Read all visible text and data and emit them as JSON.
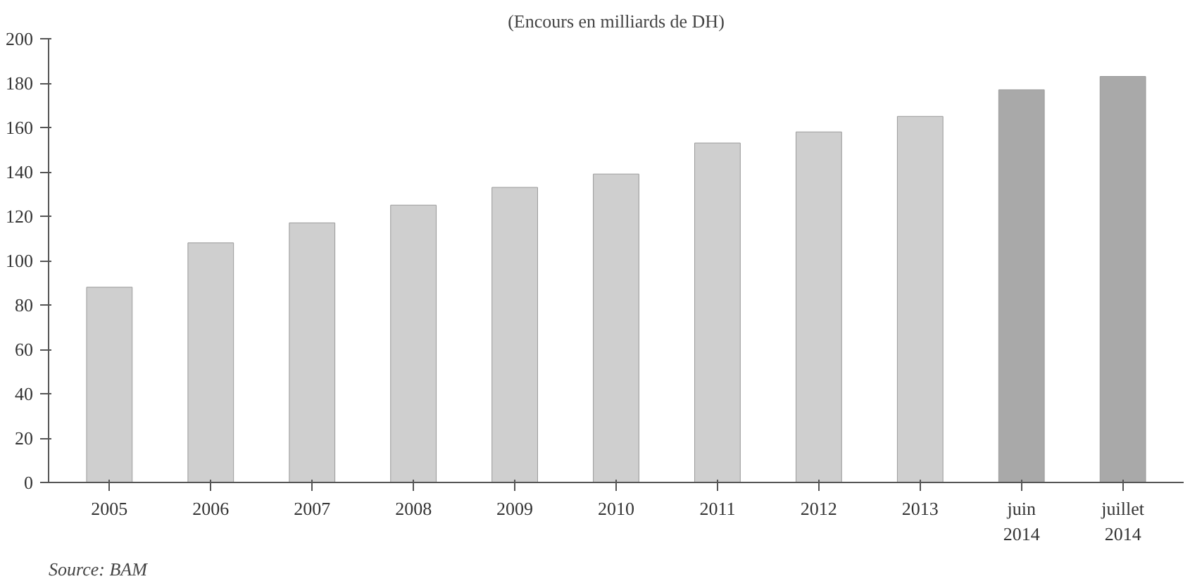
{
  "chart_data": {
    "type": "bar",
    "subtitle": "(Encours en milliards de DH)",
    "categories": [
      "2005",
      "2006",
      "2007",
      "2008",
      "2009",
      "2010",
      "2011",
      "2012",
      "2013",
      "juin\n2014",
      "juillet\n2014"
    ],
    "values": [
      88,
      108,
      117,
      125,
      133,
      139,
      153,
      158,
      165,
      177,
      183
    ],
    "colors": [
      "#cfcfcf",
      "#cfcfcf",
      "#cfcfcf",
      "#cfcfcf",
      "#cfcfcf",
      "#cfcfcf",
      "#cfcfcf",
      "#cfcfcf",
      "#cfcfcf",
      "#a9a9a9",
      "#a9a9a9"
    ],
    "ylim": [
      0,
      200
    ],
    "yticks": [
      0,
      20,
      40,
      60,
      80,
      100,
      120,
      140,
      160,
      180,
      200
    ],
    "annotations": [
      "Source: BAM"
    ],
    "grid": false
  }
}
